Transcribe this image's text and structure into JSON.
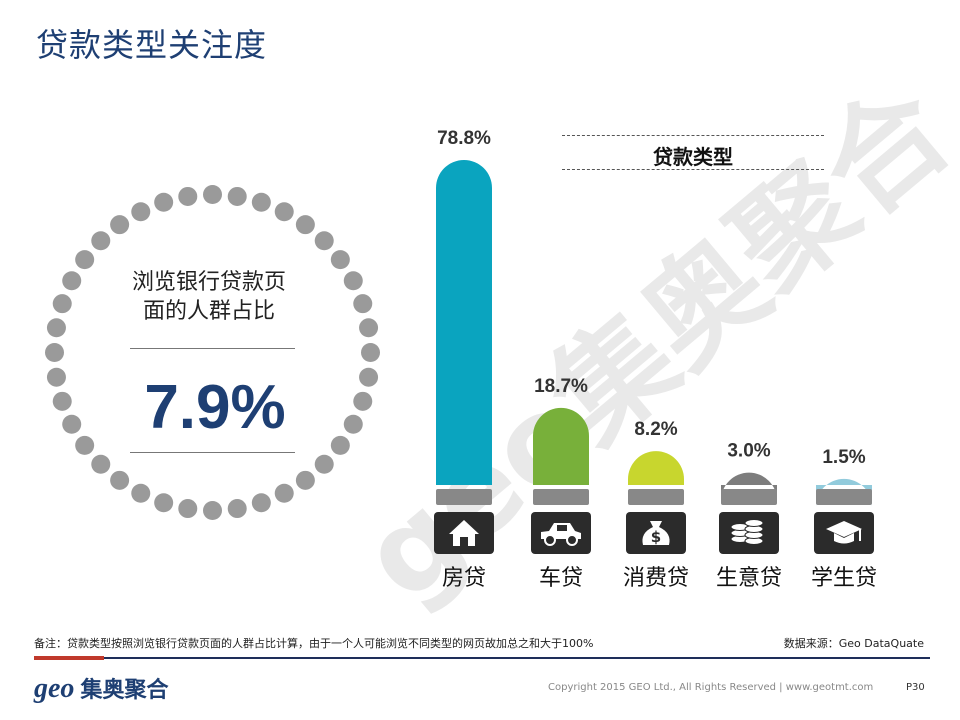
{
  "title": "贷款类型关注度",
  "watermark": "geo集奥聚合",
  "circle": {
    "caption_line1": "浏览银行贷款页",
    "caption_line2": "面的人群占比",
    "value": "7.9%"
  },
  "legend_title": "贷款类型",
  "colors": {
    "title": "#1e3f73",
    "bars": [
      "#0aa4bf",
      "#78b03a",
      "#c8d62e",
      "#7d7d7d",
      "#92cbdc"
    ],
    "base": "#888888",
    "icon_bg": "#2b2b2b",
    "dot": "#9a9a9a"
  },
  "chart_data": {
    "type": "bar",
    "categories": [
      "房贷",
      "车贷",
      "消费贷",
      "生意贷",
      "学生贷"
    ],
    "values": [
      78.8,
      18.7,
      8.2,
      3.0,
      1.5
    ],
    "value_labels": [
      "78.8%",
      "18.7%",
      "8.2%",
      "3.0%",
      "1.5%"
    ],
    "icons": [
      "house-icon",
      "car-icon",
      "money-bag-icon",
      "coins-icon",
      "graduation-cap-icon"
    ],
    "legend": "贷款类型",
    "title": "贷款类型关注度",
    "ylim": [
      0,
      80
    ]
  },
  "footer": {
    "note": "备注：贷款类型按照浏览银行贷款页面的人群占比计算，由于一个人可能浏览不同类型的网页故加总之和大于100%",
    "source": "数据来源：Geo DataQuate",
    "logo_geo": "geo",
    "logo_cn": "集奥聚合",
    "copyright": "Copyright 2015 GEO Ltd., All Rights Reserved  |  www.geotmt.com",
    "page": "P30"
  }
}
